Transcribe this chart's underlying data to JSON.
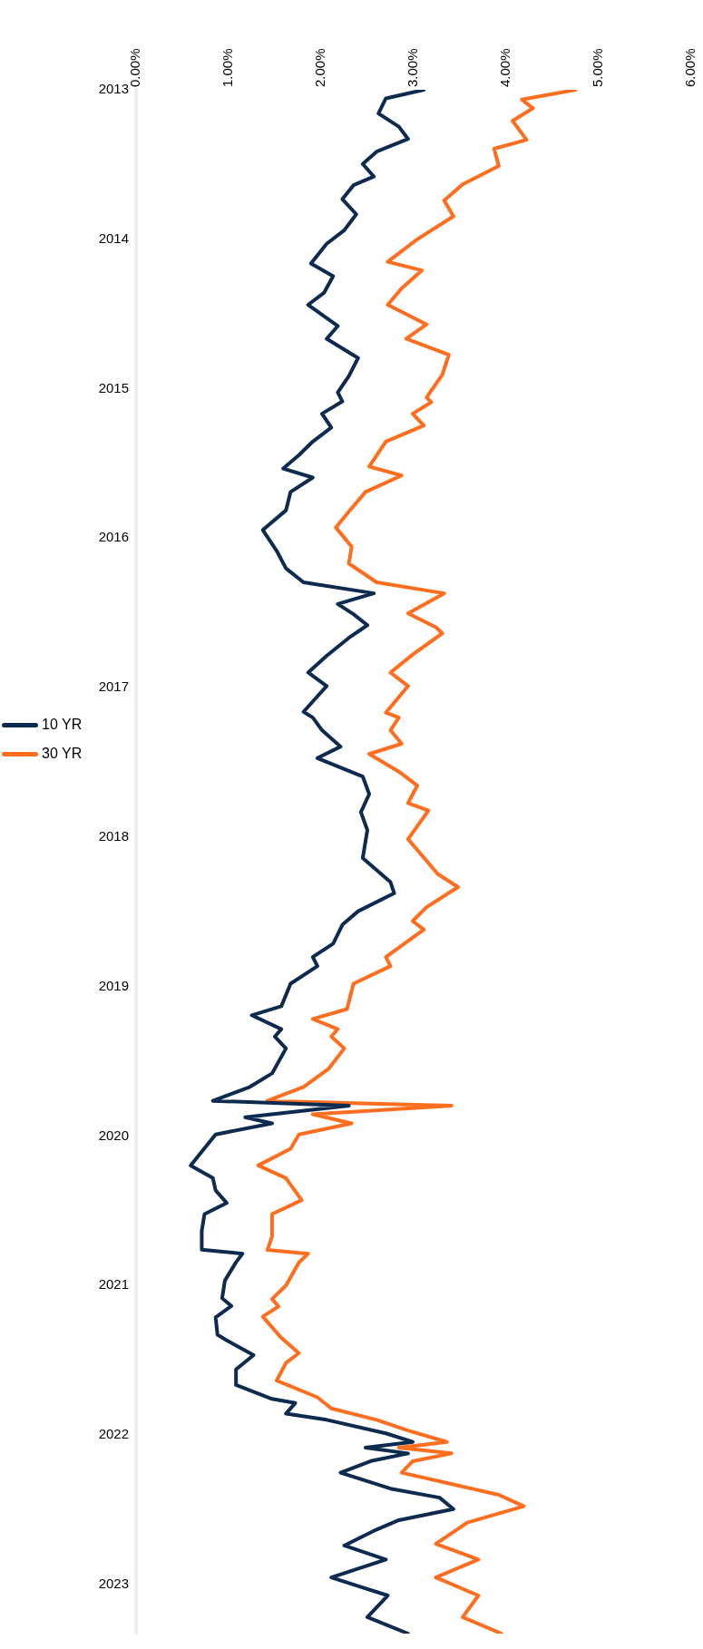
{
  "chart_data": {
    "type": "line",
    "orientation": "horizontal",
    "legend": "left",
    "grid": false,
    "ylim": [
      "2023-05-01",
      "2013-01-01"
    ],
    "yticks": [
      "2013",
      "2014",
      "2015",
      "2016",
      "2017",
      "2018",
      "2019",
      "2020",
      "2021",
      "2022",
      "2023"
    ],
    "xlim": [
      0,
      6
    ],
    "xticks": [
      {
        "value": 0,
        "label": "0.00%"
      },
      {
        "value": 1,
        "label": "1.00%"
      },
      {
        "value": 2,
        "label": "2.00%"
      },
      {
        "value": 3,
        "label": "3.00%"
      },
      {
        "value": 4,
        "label": "4.00%"
      },
      {
        "value": 5,
        "label": "5.00%"
      },
      {
        "value": 6,
        "label": "6.00%"
      }
    ],
    "series": [
      {
        "name": "10 YR",
        "color": "#0d2a4f",
        "x": [
          "2013-01-01",
          "2013-01-22",
          "2013-02-28",
          "2013-04-01",
          "2013-05-01",
          "2013-06-01",
          "2013-07-01",
          "2013-08-01",
          "2013-08-22",
          "2013-09-25",
          "2013-11-01",
          "2013-12-10",
          "2014-01-12",
          "2014-03-01",
          "2014-04-01",
          "2014-05-12",
          "2014-06-10",
          "2014-08-01",
          "2014-09-01",
          "2014-10-18",
          "2014-12-01",
          "2015-01-10",
          "2015-02-01",
          "2015-03-03",
          "2015-04-06",
          "2015-05-10",
          "2015-06-12",
          "2015-07-15",
          "2015-08-06",
          "2015-09-10",
          "2015-10-25",
          "2015-12-12",
          "2016-02-01",
          "2016-03-15",
          "2016-04-18",
          "2016-05-15",
          "2016-06-10",
          "2016-07-05",
          "2016-08-01",
          "2016-09-01",
          "2016-10-15",
          "2016-11-25",
          "2016-12-28",
          "2017-03-01",
          "2017-03-15",
          "2017-04-15",
          "2017-05-25",
          "2017-06-22",
          "2017-08-06",
          "2017-09-18",
          "2017-11-01",
          "2017-12-15",
          "2018-02-21",
          "2018-04-21",
          "2018-05-18",
          "2018-07-01",
          "2018-08-03",
          "2018-09-18",
          "2018-10-21",
          "2018-11-12",
          "2018-12-25",
          "2019-02-18",
          "2019-03-12",
          "2019-04-15",
          "2019-05-03",
          "2019-06-01",
          "2019-08-01",
          "2019-09-03",
          "2019-10-07",
          "2019-10-19",
          "2019-11-16",
          "2019-12-01",
          "2019-12-28",
          "2020-03-13",
          "2020-04-13",
          "2020-05-13",
          "2020-06-13",
          "2020-07-10",
          "2020-08-20",
          "2020-10-05",
          "2020-10-15",
          "2020-11-05",
          "2020-12-20",
          "2021-02-01",
          "2021-02-20",
          "2021-03-20",
          "2021-05-01",
          "2021-05-15",
          "2021-06-20",
          "2021-07-25",
          "2021-09-01",
          "2021-10-05",
          "2021-10-15",
          "2021-11-10",
          "2021-11-25",
          "2021-12-28",
          "2022-01-18",
          "2022-02-01",
          "2022-02-15",
          "2022-03-05",
          "2022-04-03",
          "2022-05-12",
          "2022-06-03",
          "2022-07-01",
          "2022-07-28",
          "2022-08-20",
          "2022-09-28",
          "2022-11-01",
          "2022-12-15",
          "2023-01-05",
          "2023-01-28",
          "2023-03-22",
          "2023-05-01"
        ],
        "values": [
          3.11,
          2.7,
          2.62,
          2.84,
          2.94,
          2.6,
          2.45,
          2.57,
          2.35,
          2.23,
          2.38,
          2.25,
          2.06,
          1.89,
          2.13,
          2.03,
          1.86,
          2.18,
          2.06,
          2.4,
          2.3,
          2.18,
          2.23,
          2.01,
          2.11,
          1.91,
          1.76,
          1.59,
          1.91,
          1.67,
          1.62,
          1.37,
          1.52,
          1.62,
          1.81,
          2.57,
          2.18,
          2.35,
          2.5,
          2.3,
          2.06,
          1.86,
          2.06,
          1.81,
          1.91,
          2.01,
          2.21,
          1.96,
          2.45,
          2.52,
          2.43,
          2.5,
          2.45,
          2.75,
          2.79,
          2.4,
          2.23,
          2.13,
          1.91,
          1.96,
          1.67,
          1.57,
          1.25,
          1.57,
          1.5,
          1.62,
          1.47,
          1.23,
          0.83,
          2.3,
          1.18,
          1.47,
          0.86,
          0.59,
          0.83,
          0.86,
          0.98,
          0.74,
          0.71,
          0.71,
          1.15,
          1.08,
          0.96,
          0.93,
          1.03,
          0.86,
          0.88,
          0.98,
          1.27,
          1.08,
          1.08,
          1.47,
          1.72,
          1.62,
          2.06,
          2.7,
          2.99,
          2.48,
          2.94,
          2.55,
          2.21,
          2.75,
          3.28,
          3.43,
          2.84,
          2.6,
          2.25,
          2.7,
          2.11,
          2.4,
          2.72,
          2.5,
          2.94
        ]
      },
      {
        "name": "30 YR",
        "color": "#ff6d1f",
        "x": [
          "2013-01-01",
          "2013-01-25",
          "2013-02-15",
          "2013-03-18",
          "2013-05-03",
          "2013-05-25",
          "2013-07-06",
          "2013-08-20",
          "2013-09-28",
          "2013-11-06",
          "2014-01-01",
          "2014-02-25",
          "2014-03-18",
          "2014-05-01",
          "2014-06-10",
          "2014-07-28",
          "2014-09-01",
          "2014-10-10",
          "2014-11-28",
          "2015-01-22",
          "2015-02-03",
          "2015-03-03",
          "2015-04-01",
          "2015-05-10",
          "2015-07-10",
          "2015-08-01",
          "2015-09-10",
          "2015-10-28",
          "2015-12-06",
          "2016-01-22",
          "2016-03-03",
          "2016-04-18",
          "2016-05-15",
          "2016-07-03",
          "2016-08-06",
          "2016-08-21",
          "2016-10-12",
          "2016-11-25",
          "2016-12-28",
          "2017-03-03",
          "2017-03-15",
          "2017-04-15",
          "2017-05-18",
          "2017-06-12",
          "2017-07-25",
          "2017-08-28",
          "2017-10-10",
          "2017-10-28",
          "2018-01-06",
          "2018-04-01",
          "2018-05-03",
          "2018-06-21",
          "2018-07-25",
          "2018-08-15",
          "2018-10-21",
          "2018-11-12",
          "2018-12-25",
          "2019-02-25",
          "2019-03-21",
          "2019-04-15",
          "2019-05-03",
          "2019-06-01",
          "2019-07-21",
          "2019-09-03",
          "2019-10-07",
          "2019-10-19",
          "2019-11-09",
          "2019-12-01",
          "2019-12-28",
          "2020-02-01",
          "2020-03-13",
          "2020-04-13",
          "2020-06-06",
          "2020-07-10",
          "2020-09-03",
          "2020-10-06",
          "2020-10-15",
          "2020-11-06",
          "2021-01-01",
          "2021-02-03",
          "2021-02-21",
          "2021-03-18",
          "2021-05-09",
          "2021-06-15",
          "2021-07-09",
          "2021-08-21",
          "2021-10-01",
          "2021-10-28",
          "2021-11-25",
          "2021-12-21",
          "2022-01-18",
          "2022-02-01",
          "2022-02-15",
          "2022-03-06",
          "2022-04-03",
          "2022-05-27",
          "2022-06-24",
          "2022-08-03",
          "2022-09-24",
          "2022-11-01",
          "2022-12-15",
          "2023-01-28",
          "2023-03-22",
          "2023-05-01"
        ],
        "values": [
          4.75,
          4.17,
          4.29,
          4.07,
          4.22,
          3.87,
          3.92,
          3.53,
          3.33,
          3.43,
          3.04,
          2.72,
          3.09,
          2.87,
          2.72,
          3.14,
          2.92,
          3.38,
          3.31,
          3.14,
          3.19,
          2.99,
          3.11,
          2.7,
          2.52,
          2.87,
          2.48,
          2.3,
          2.16,
          2.33,
          2.3,
          2.6,
          3.33,
          2.94,
          3.24,
          3.31,
          2.99,
          2.75,
          2.94,
          2.7,
          2.84,
          2.75,
          2.87,
          2.52,
          2.84,
          3.04,
          2.94,
          3.16,
          2.94,
          3.26,
          3.48,
          3.14,
          2.99,
          3.11,
          2.7,
          2.75,
          2.35,
          2.28,
          1.91,
          2.18,
          2.11,
          2.25,
          2.08,
          1.81,
          1.42,
          3.41,
          1.91,
          2.33,
          1.76,
          1.67,
          1.32,
          1.62,
          1.79,
          1.47,
          1.47,
          1.42,
          1.86,
          1.76,
          1.62,
          1.47,
          1.54,
          1.37,
          1.57,
          1.76,
          1.62,
          1.52,
          1.96,
          2.11,
          2.6,
          2.94,
          3.36,
          2.84,
          3.41,
          2.99,
          2.87,
          3.92,
          4.19,
          3.58,
          3.24,
          3.7,
          3.24,
          3.7,
          3.53,
          3.95
        ]
      }
    ]
  }
}
